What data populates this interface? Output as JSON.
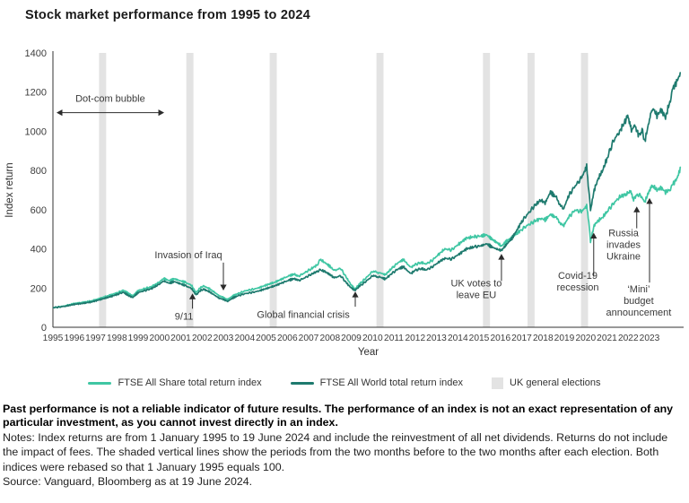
{
  "title": "Stock market performance from 1995 to 2024",
  "legend": {
    "items": [
      {
        "label": "FTSE All Share total return index",
        "color": "#3fc6a3",
        "type": "line"
      },
      {
        "label": "FTSE All World total return index",
        "color": "#1e7a6e",
        "type": "line"
      },
      {
        "label": "UK general elections",
        "color": "#e3e3e3",
        "type": "box"
      }
    ]
  },
  "footer": {
    "disclaimer": "Past performance is not a reliable indicator of future results. The performance of an index is not an exact representation of any particular investment, as you cannot invest directly in an index.",
    "notes": "Notes: Index returns are from 1 January 1995 to 19 June 2024 and include the reinvestment of all net dividends. Returns do not include the impact of fees. The shaded vertical lines show the periods from the two months before to the two months after each election. Both indices were rebased so that 1 January 1995 equals 100.",
    "source": "Source: Vanguard, Bloomberg as at 19 June 2024."
  },
  "chart_data": {
    "type": "line",
    "xlabel": "Year",
    "ylabel": "Index return",
    "xlim": [
      1995,
      2024.6
    ],
    "ylim": [
      0,
      1400
    ],
    "yticks": [
      0,
      200,
      400,
      600,
      800,
      1000,
      1200,
      1400
    ],
    "xticks": [
      1995,
      1996,
      1997,
      1998,
      1999,
      2000,
      2001,
      2002,
      2003,
      2004,
      2005,
      2006,
      2007,
      2008,
      2009,
      2010,
      2011,
      2012,
      2013,
      2014,
      2015,
      2016,
      2017,
      2018,
      2019,
      2020,
      2021,
      2022,
      2023
    ],
    "grid": false,
    "legend_position": "bottom",
    "elections": {
      "label": "UK general elections",
      "color": "#e3e3e3",
      "half_width_years": 0.167,
      "years": [
        1997.33,
        2001.43,
        2005.34,
        2010.35,
        2015.35,
        2017.44,
        2019.95
      ]
    },
    "series": [
      {
        "name": "FTSE All Share total return index",
        "color": "#3fc6a3",
        "points": [
          [
            1995.0,
            100
          ],
          [
            1995.3,
            104
          ],
          [
            1995.6,
            110
          ],
          [
            1996.0,
            121
          ],
          [
            1996.4,
            127
          ],
          [
            1996.8,
            134
          ],
          [
            1997.2,
            147
          ],
          [
            1997.6,
            161
          ],
          [
            1998.0,
            175
          ],
          [
            1998.3,
            189
          ],
          [
            1998.55,
            172
          ],
          [
            1998.75,
            161
          ],
          [
            1999.0,
            187
          ],
          [
            1999.3,
            197
          ],
          [
            1999.6,
            206
          ],
          [
            1999.9,
            223
          ],
          [
            2000.2,
            249
          ],
          [
            2000.45,
            238
          ],
          [
            2000.7,
            247
          ],
          [
            2000.95,
            238
          ],
          [
            2001.2,
            230
          ],
          [
            2001.5,
            214
          ],
          [
            2001.72,
            177
          ],
          [
            2001.95,
            206
          ],
          [
            2002.1,
            209
          ],
          [
            2002.35,
            196
          ],
          [
            2002.55,
            181
          ],
          [
            2002.8,
            161
          ],
          [
            2003.0,
            152
          ],
          [
            2003.2,
            141
          ],
          [
            2003.45,
            161
          ],
          [
            2003.7,
            172
          ],
          [
            2004.0,
            185
          ],
          [
            2004.3,
            192
          ],
          [
            2004.6,
            199
          ],
          [
            2005.0,
            215
          ],
          [
            2005.4,
            229
          ],
          [
            2005.8,
            249
          ],
          [
            2006.1,
            263
          ],
          [
            2006.35,
            272
          ],
          [
            2006.5,
            259
          ],
          [
            2006.8,
            277
          ],
          [
            2007.1,
            297
          ],
          [
            2007.4,
            318
          ],
          [
            2007.55,
            345
          ],
          [
            2007.75,
            331
          ],
          [
            2008.0,
            311
          ],
          [
            2008.2,
            289
          ],
          [
            2008.5,
            301
          ],
          [
            2008.8,
            249
          ],
          [
            2009.0,
            216
          ],
          [
            2009.17,
            194
          ],
          [
            2009.4,
            222
          ],
          [
            2009.7,
            252
          ],
          [
            2010.0,
            285
          ],
          [
            2010.35,
            278
          ],
          [
            2010.6,
            268
          ],
          [
            2010.9,
            300
          ],
          [
            2011.2,
            330
          ],
          [
            2011.45,
            345
          ],
          [
            2011.65,
            322
          ],
          [
            2011.8,
            305
          ],
          [
            2012.0,
            320
          ],
          [
            2012.3,
            331
          ],
          [
            2012.5,
            322
          ],
          [
            2012.8,
            341
          ],
          [
            2013.1,
            372
          ],
          [
            2013.4,
            400
          ],
          [
            2013.7,
            394
          ],
          [
            2014.0,
            420
          ],
          [
            2014.4,
            455
          ],
          [
            2014.8,
            462
          ],
          [
            2015.1,
            466
          ],
          [
            2015.35,
            472
          ],
          [
            2015.6,
            450
          ],
          [
            2015.85,
            431
          ],
          [
            2016.05,
            414
          ],
          [
            2016.3,
            440
          ],
          [
            2016.55,
            461
          ],
          [
            2016.8,
            481
          ],
          [
            2017.0,
            500
          ],
          [
            2017.3,
            522
          ],
          [
            2017.6,
            540
          ],
          [
            2017.9,
            556
          ],
          [
            2018.1,
            548
          ],
          [
            2018.35,
            576
          ],
          [
            2018.6,
            560
          ],
          [
            2018.95,
            516
          ],
          [
            2019.2,
            560
          ],
          [
            2019.5,
            598
          ],
          [
            2019.8,
            590
          ],
          [
            2020.05,
            618
          ],
          [
            2020.15,
            540
          ],
          [
            2020.23,
            435
          ],
          [
            2020.4,
            520
          ],
          [
            2020.6,
            545
          ],
          [
            2020.8,
            560
          ],
          [
            2021.0,
            590
          ],
          [
            2021.3,
            630
          ],
          [
            2021.6,
            665
          ],
          [
            2021.9,
            680
          ],
          [
            2022.1,
            692
          ],
          [
            2022.25,
            655
          ],
          [
            2022.45,
            680
          ],
          [
            2022.6,
            668
          ],
          [
            2022.78,
            640
          ],
          [
            2023.0,
            700
          ],
          [
            2023.15,
            722
          ],
          [
            2023.35,
            700
          ],
          [
            2023.55,
            712
          ],
          [
            2023.75,
            690
          ],
          [
            2023.95,
            702
          ],
          [
            2024.1,
            730
          ],
          [
            2024.3,
            762
          ],
          [
            2024.47,
            818
          ]
        ]
      },
      {
        "name": "FTSE All World total return index",
        "color": "#1e7a6e",
        "points": [
          [
            1995.0,
            100
          ],
          [
            1995.3,
            103
          ],
          [
            1995.6,
            108
          ],
          [
            1996.0,
            117
          ],
          [
            1996.4,
            122
          ],
          [
            1996.8,
            129
          ],
          [
            1997.2,
            141
          ],
          [
            1997.6,
            153
          ],
          [
            1998.0,
            167
          ],
          [
            1998.3,
            179
          ],
          [
            1998.55,
            162
          ],
          [
            1998.75,
            152
          ],
          [
            1999.0,
            177
          ],
          [
            1999.3,
            187
          ],
          [
            1999.6,
            196
          ],
          [
            1999.9,
            213
          ],
          [
            2000.2,
            236
          ],
          [
            2000.45,
            225
          ],
          [
            2000.7,
            233
          ],
          [
            2000.95,
            223
          ],
          [
            2001.2,
            213
          ],
          [
            2001.5,
            198
          ],
          [
            2001.72,
            165
          ],
          [
            2001.95,
            191
          ],
          [
            2002.1,
            193
          ],
          [
            2002.35,
            181
          ],
          [
            2002.55,
            166
          ],
          [
            2002.8,
            149
          ],
          [
            2003.0,
            142
          ],
          [
            2003.2,
            132
          ],
          [
            2003.45,
            150
          ],
          [
            2003.7,
            161
          ],
          [
            2004.0,
            171
          ],
          [
            2004.3,
            177
          ],
          [
            2004.6,
            183
          ],
          [
            2005.0,
            197
          ],
          [
            2005.4,
            211
          ],
          [
            2005.8,
            229
          ],
          [
            2006.1,
            241
          ],
          [
            2006.35,
            249
          ],
          [
            2006.5,
            237
          ],
          [
            2006.8,
            251
          ],
          [
            2007.1,
            269
          ],
          [
            2007.4,
            285
          ],
          [
            2007.55,
            292
          ],
          [
            2007.75,
            285
          ],
          [
            2008.0,
            269
          ],
          [
            2008.2,
            252
          ],
          [
            2008.5,
            263
          ],
          [
            2008.8,
            223
          ],
          [
            2009.0,
            201
          ],
          [
            2009.17,
            188
          ],
          [
            2009.4,
            210
          ],
          [
            2009.7,
            235
          ],
          [
            2010.0,
            262
          ],
          [
            2010.35,
            256
          ],
          [
            2010.6,
            246
          ],
          [
            2010.9,
            274
          ],
          [
            2011.2,
            298
          ],
          [
            2011.45,
            308
          ],
          [
            2011.65,
            288
          ],
          [
            2011.8,
            274
          ],
          [
            2012.0,
            290
          ],
          [
            2012.3,
            300
          ],
          [
            2012.5,
            292
          ],
          [
            2012.8,
            308
          ],
          [
            2013.1,
            332
          ],
          [
            2013.4,
            352
          ],
          [
            2013.7,
            348
          ],
          [
            2014.0,
            368
          ],
          [
            2014.4,
            400
          ],
          [
            2014.8,
            410
          ],
          [
            2015.1,
            416
          ],
          [
            2015.35,
            426
          ],
          [
            2015.6,
            410
          ],
          [
            2015.85,
            398
          ],
          [
            2016.05,
            392
          ],
          [
            2016.3,
            424
          ],
          [
            2016.55,
            455
          ],
          [
            2016.8,
            500
          ],
          [
            2017.0,
            540
          ],
          [
            2017.3,
            580
          ],
          [
            2017.6,
            620
          ],
          [
            2017.9,
            650
          ],
          [
            2018.1,
            634
          ],
          [
            2018.35,
            690
          ],
          [
            2018.6,
            664
          ],
          [
            2018.95,
            600
          ],
          [
            2019.2,
            670
          ],
          [
            2019.5,
            720
          ],
          [
            2019.8,
            760
          ],
          [
            2020.05,
            820
          ],
          [
            2020.15,
            700
          ],
          [
            2020.23,
            595
          ],
          [
            2020.4,
            700
          ],
          [
            2020.6,
            760
          ],
          [
            2020.8,
            800
          ],
          [
            2021.0,
            860
          ],
          [
            2021.3,
            950
          ],
          [
            2021.6,
            1000
          ],
          [
            2021.9,
            1060
          ],
          [
            2022.0,
            1080
          ],
          [
            2022.15,
            1000
          ],
          [
            2022.3,
            1030
          ],
          [
            2022.5,
            980
          ],
          [
            2022.65,
            1005
          ],
          [
            2022.78,
            950
          ],
          [
            2023.0,
            1060
          ],
          [
            2023.15,
            1120
          ],
          [
            2023.35,
            1080
          ],
          [
            2023.55,
            1110
          ],
          [
            2023.75,
            1070
          ],
          [
            2023.95,
            1150
          ],
          [
            2024.1,
            1220
          ],
          [
            2024.3,
            1258
          ],
          [
            2024.47,
            1300
          ]
        ]
      }
    ],
    "annotations": [
      {
        "id": "dotcom-bubble",
        "label": {
          "x": 1997.69,
          "y": 1150,
          "lines": [
            "Dot-com bubble"
          ]
        },
        "arrow": {
          "dir": "h",
          "x1": 1995.21,
          "x2": 2000.18,
          "y": 1095
        }
      },
      {
        "id": "invasion-of-iraq",
        "label": {
          "x": 2001.36,
          "y": 352,
          "lines": [
            "Invasion of Iraq"
          ]
        },
        "arrow": {
          "dir": "down",
          "x": 2003.0,
          "tail": 330,
          "tip": 192
        }
      },
      {
        "id": "nine-eleven",
        "label": {
          "x": 2001.15,
          "y": 40,
          "lines": [
            "9/11"
          ]
        },
        "arrow": {
          "dir": "up",
          "x": 2001.55,
          "tail": 95,
          "tip": 168
        }
      },
      {
        "id": "global-financial-crisis",
        "label": {
          "x": 2006.75,
          "y": 48,
          "lines": [
            "Global financial crisis"
          ]
        },
        "arrow": {
          "dir": "up",
          "x": 2009.19,
          "tail": 105,
          "tip": 178
        }
      },
      {
        "id": "uk-votes-leave-eu",
        "label": {
          "x": 2014.87,
          "y": 208,
          "lines": [
            "UK votes to",
            "leave EU"
          ]
        },
        "arrow": {
          "dir": "up",
          "x": 2016.05,
          "tail": 236,
          "tip": 370
        }
      },
      {
        "id": "covid-recession",
        "label": {
          "x": 2019.63,
          "y": 247,
          "lines": [
            "Covid-19",
            "recession"
          ]
        },
        "arrow": {
          "dir": "up",
          "x": 2020.38,
          "tail": 258,
          "tip": 478
        }
      },
      {
        "id": "russia-invades-ukraine",
        "label": {
          "x": 2021.78,
          "y": 465,
          "lines": [
            "Russia",
            "invades",
            "Ukraine"
          ]
        },
        "arrow": {
          "dir": "up",
          "x": 2022.4,
          "tail": 505,
          "tip": 612
        }
      },
      {
        "id": "mini-budget",
        "label": {
          "x": 2022.49,
          "y": 178,
          "lines": [
            "‘Mini’",
            "budget",
            "announcement"
          ]
        },
        "arrow": {
          "dir": "up",
          "x": 2023.0,
          "tail": 228,
          "tip": 655
        }
      }
    ]
  }
}
